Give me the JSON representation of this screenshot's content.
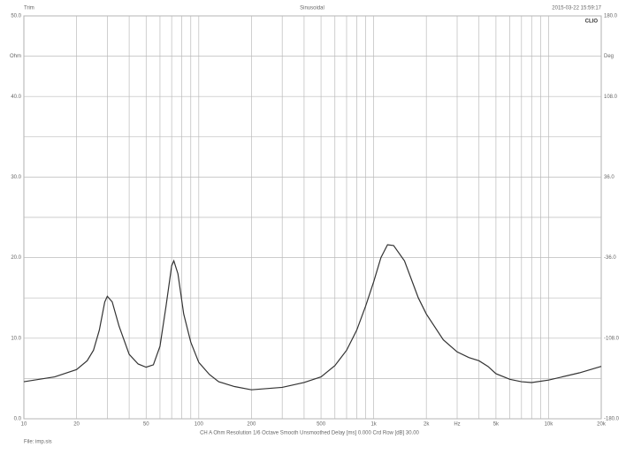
{
  "chart_data": {
    "type": "line",
    "xscale": "log",
    "title": "Sinusoidal",
    "top_left": "Trim",
    "timestamp": "2015-03-22 15:59:17",
    "logo": "CLIO",
    "ylabel": "Ohm",
    "y2label": "Deg",
    "footer": "CH A   Ohm   Resolution 1/6 Octave   Smooth Unsmoothed   Delay [ms] 0.000   Crd Row [dB] 30.00",
    "file": "File: imp.sis",
    "xlim": [
      10,
      20000
    ],
    "xticks": [
      10,
      20,
      50,
      100,
      200,
      500,
      {
        "value": 1000,
        "label": "1k"
      },
      {
        "value": 2000,
        "label": "2k"
      },
      {
        "value": 3000,
        "label": "Hz"
      },
      {
        "value": 5000,
        "label": "5k"
      },
      {
        "value": 10000,
        "label": "10k"
      },
      {
        "value": 20000,
        "label": "20k"
      }
    ],
    "xminor": [
      30,
      40,
      60,
      70,
      80,
      90,
      300,
      400,
      600,
      700,
      800,
      900,
      4000,
      6000,
      7000,
      8000,
      9000
    ],
    "ylim": [
      0,
      50
    ],
    "yticks": [
      {
        "value": 0,
        "label": "0.0"
      },
      {
        "value": 10,
        "label": "10.0"
      },
      {
        "value": 20,
        "label": "20.0"
      },
      {
        "value": 30,
        "label": "30.0"
      },
      {
        "value": 40,
        "label": "40.0"
      },
      {
        "value": 50,
        "label": "50.0"
      }
    ],
    "yminor": [
      5,
      15,
      25,
      35,
      45
    ],
    "y2lim": [
      -180,
      180
    ],
    "y2ticks": [
      {
        "value": -180,
        "label": "-180.0"
      },
      {
        "value": -108,
        "label": "-108.0"
      },
      {
        "value": -36,
        "label": "-36.0"
      },
      {
        "value": 36,
        "label": "36.0"
      },
      {
        "value": 108,
        "label": "108.0"
      },
      {
        "value": 180,
        "label": "180.0"
      }
    ],
    "grid": true,
    "x": [
      10,
      15,
      20,
      23,
      25,
      27,
      29,
      30,
      32,
      35,
      40,
      45,
      50,
      55,
      60,
      65,
      70,
      72,
      76,
      82,
      90,
      100,
      115,
      130,
      160,
      200,
      300,
      400,
      500,
      600,
      700,
      800,
      900,
      1000,
      1100,
      1200,
      1300,
      1500,
      1800,
      2000,
      2500,
      3000,
      3500,
      4000,
      4500,
      5000,
      6000,
      7000,
      8000,
      10000,
      15000,
      20000
    ],
    "series": [
      {
        "color": "#333333",
        "values": [
          4.6,
          5.2,
          6.1,
          7.2,
          8.5,
          11,
          14.5,
          15.2,
          14.5,
          11.5,
          8,
          6.8,
          6.4,
          6.7,
          9,
          14,
          19,
          19.6,
          18,
          13,
          9.5,
          7.0,
          5.5,
          4.6,
          4.0,
          3.6,
          3.9,
          4.5,
          5.2,
          6.6,
          8.5,
          11,
          14,
          17,
          20,
          21.6,
          21.5,
          19.6,
          15,
          13,
          9.8,
          8.3,
          7.6,
          7.2,
          6.5,
          5.6,
          4.9,
          4.6,
          4.5,
          4.8,
          5.7,
          6.5
        ]
      }
    ]
  }
}
